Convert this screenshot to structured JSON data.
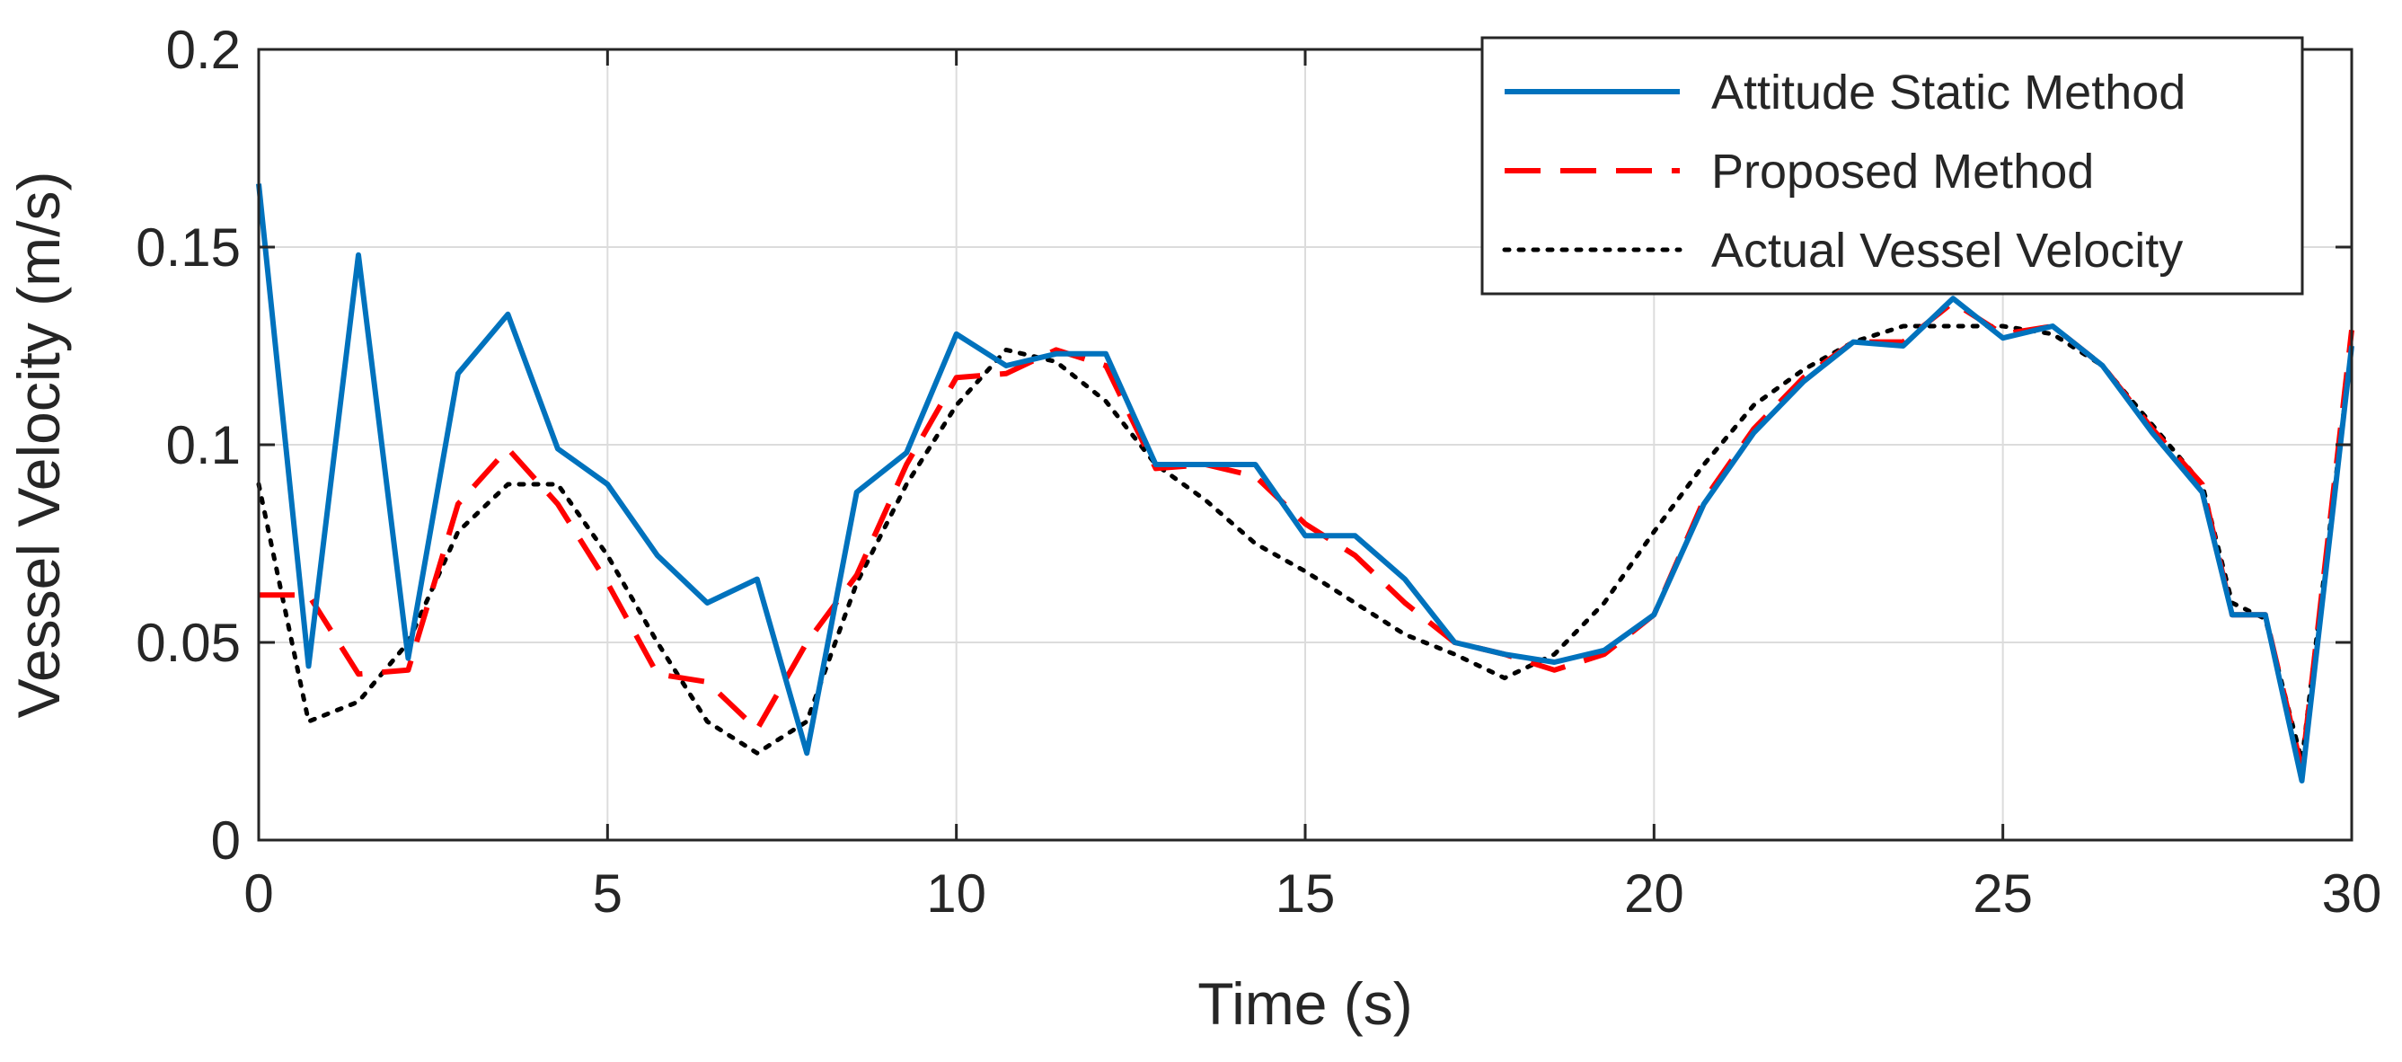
{
  "chart_data": {
    "type": "line",
    "title": "",
    "xlabel": "Time (s)",
    "ylabel": "Vessel Velocity (m/s)",
    "xlim": [
      0,
      30
    ],
    "ylim": [
      0,
      0.2
    ],
    "grid": true,
    "legend_position": "top-right",
    "x_ticks": [
      0,
      5,
      10,
      15,
      20,
      25,
      30
    ],
    "x_tick_labels": [
      "0",
      "5",
      "10",
      "15",
      "20",
      "25",
      "30"
    ],
    "y_ticks": [
      0,
      0.05,
      0.1,
      0.15,
      0.2
    ],
    "y_tick_labels": [
      "0",
      "0.05",
      "0.1",
      "0.15",
      "0.2"
    ],
    "series": [
      {
        "name": "Attitude Static Method",
        "color": "#0072BD",
        "style": "solid",
        "points": [
          [
            0,
            0.166
          ],
          [
            0.75,
            0.044
          ],
          [
            1.5,
            0.148
          ],
          [
            2.25,
            0.046
          ],
          [
            3.0,
            0.118
          ],
          [
            3.75,
            0.133
          ],
          [
            4.5,
            0.099
          ],
          [
            5.25,
            0.09
          ],
          [
            6.0,
            0.072
          ],
          [
            6.75,
            0.06
          ],
          [
            7.5,
            0.066
          ],
          [
            8.25,
            0.022
          ],
          [
            9.0,
            0.088
          ],
          [
            9.75,
            0.098
          ],
          [
            10.5,
            0.128
          ],
          [
            11.25,
            0.12
          ],
          [
            12.0,
            0.123
          ],
          [
            12.75,
            0.123
          ],
          [
            13.5,
            0.095
          ],
          [
            14.25,
            0.095
          ],
          [
            15.0,
            0.095
          ],
          [
            15.75,
            0.077
          ],
          [
            16.5,
            0.077
          ],
          [
            17.25,
            0.066
          ],
          [
            18.0,
            0.05
          ],
          [
            18.75,
            0.047
          ],
          [
            19.5,
            0.045
          ],
          [
            20.25,
            0.048
          ],
          [
            21.0,
            0.057
          ],
          [
            21.75,
            0.085
          ],
          [
            22.5,
            0.103
          ],
          [
            23.25,
            0.116
          ],
          [
            24.0,
            0.126
          ],
          [
            24.75,
            0.125
          ],
          [
            25.5,
            0.137
          ],
          [
            26.25,
            0.127
          ],
          [
            27.0,
            0.13
          ],
          [
            27.75,
            0.12
          ],
          [
            28.5,
            0.103
          ],
          [
            29.25,
            0.088
          ],
          [
            29.7,
            0.057
          ],
          [
            30.2,
            0.057
          ],
          [
            30.75,
            0.015
          ],
          [
            31.5,
            0.125
          ]
        ]
      },
      {
        "name": "Proposed Method",
        "color": "#FF0000",
        "style": "dashed",
        "points": [
          [
            0,
            0.062
          ],
          [
            0.75,
            0.062
          ],
          [
            1.5,
            0.042
          ],
          [
            2.25,
            0.043
          ],
          [
            3.0,
            0.085
          ],
          [
            3.75,
            0.099
          ],
          [
            4.5,
            0.085
          ],
          [
            5.25,
            0.065
          ],
          [
            6.0,
            0.042
          ],
          [
            6.75,
            0.04
          ],
          [
            7.5,
            0.028
          ],
          [
            8.25,
            0.05
          ],
          [
            9.0,
            0.067
          ],
          [
            9.75,
            0.095
          ],
          [
            10.5,
            0.117
          ],
          [
            11.25,
            0.118
          ],
          [
            12.0,
            0.124
          ],
          [
            12.75,
            0.12
          ],
          [
            13.5,
            0.094
          ],
          [
            14.25,
            0.095
          ],
          [
            15.0,
            0.092
          ],
          [
            15.75,
            0.08
          ],
          [
            16.5,
            0.072
          ],
          [
            17.25,
            0.06
          ],
          [
            18.0,
            0.05
          ],
          [
            18.75,
            0.047
          ],
          [
            19.5,
            0.043
          ],
          [
            20.25,
            0.047
          ],
          [
            21.0,
            0.057
          ],
          [
            21.75,
            0.086
          ],
          [
            22.5,
            0.104
          ],
          [
            23.25,
            0.117
          ],
          [
            24.0,
            0.126
          ],
          [
            24.75,
            0.126
          ],
          [
            25.5,
            0.136
          ],
          [
            26.25,
            0.128
          ],
          [
            27.0,
            0.13
          ],
          [
            27.75,
            0.12
          ],
          [
            28.5,
            0.104
          ],
          [
            29.25,
            0.09
          ],
          [
            29.7,
            0.057
          ],
          [
            30.2,
            0.057
          ],
          [
            30.75,
            0.018
          ],
          [
            31.5,
            0.129
          ]
        ]
      },
      {
        "name": "Actual Vessel Velocity",
        "color": "#000000",
        "style": "dotted",
        "points": [
          [
            0,
            0.09
          ],
          [
            0.75,
            0.03
          ],
          [
            1.5,
            0.035
          ],
          [
            2.25,
            0.05
          ],
          [
            3.0,
            0.078
          ],
          [
            3.75,
            0.09
          ],
          [
            4.5,
            0.09
          ],
          [
            5.25,
            0.072
          ],
          [
            6.0,
            0.05
          ],
          [
            6.75,
            0.03
          ],
          [
            7.5,
            0.022
          ],
          [
            8.25,
            0.03
          ],
          [
            9.0,
            0.065
          ],
          [
            9.75,
            0.09
          ],
          [
            10.5,
            0.11
          ],
          [
            11.25,
            0.124
          ],
          [
            12.0,
            0.121
          ],
          [
            12.75,
            0.111
          ],
          [
            13.5,
            0.095
          ],
          [
            14.25,
            0.086
          ],
          [
            15.0,
            0.075
          ],
          [
            15.75,
            0.068
          ],
          [
            16.5,
            0.06
          ],
          [
            17.25,
            0.052
          ],
          [
            18.0,
            0.047
          ],
          [
            18.75,
            0.041
          ],
          [
            19.5,
            0.047
          ],
          [
            20.25,
            0.06
          ],
          [
            21.0,
            0.078
          ],
          [
            21.75,
            0.095
          ],
          [
            22.5,
            0.11
          ],
          [
            23.25,
            0.119
          ],
          [
            24.0,
            0.126
          ],
          [
            24.75,
            0.13
          ],
          [
            25.5,
            0.13
          ],
          [
            26.25,
            0.13
          ],
          [
            27.0,
            0.128
          ],
          [
            27.75,
            0.12
          ],
          [
            28.5,
            0.105
          ],
          [
            29.25,
            0.09
          ],
          [
            29.7,
            0.06
          ],
          [
            30.2,
            0.056
          ],
          [
            30.75,
            0.02
          ],
          [
            31.5,
            0.125
          ]
        ]
      }
    ]
  }
}
